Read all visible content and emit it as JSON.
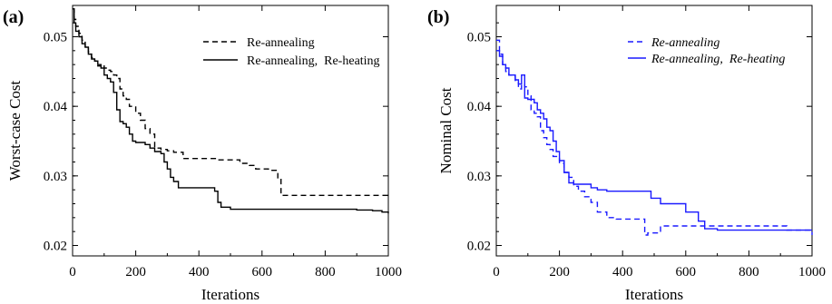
{
  "chart_data": [
    {
      "panel_label": "(a)",
      "type": "line",
      "xlabel": "Iterations",
      "ylabel": "Worst-case Cost",
      "xlim": [
        0,
        1000
      ],
      "ylim": [
        0.0185,
        0.0545
      ],
      "xticks": [
        0,
        200,
        400,
        600,
        800,
        1000
      ],
      "yticks": [
        0.02,
        0.03,
        0.04,
        0.05
      ],
      "xtick_labels": [
        "0",
        "200",
        "400",
        "600",
        "800",
        "1000"
      ],
      "ytick_labels": [
        "0.02",
        "0.03",
        "0.04",
        "0.05"
      ],
      "legend_position": "top-right",
      "legend_italic": false,
      "series": [
        {
          "name": "Re-annealing",
          "color": "#000000",
          "dash": "dashed",
          "x": [
            0,
            5,
            10,
            20,
            30,
            40,
            50,
            60,
            70,
            80,
            90,
            100,
            110,
            120,
            130,
            140,
            150,
            160,
            170,
            180,
            200,
            215,
            230,
            245,
            260,
            280,
            300,
            320,
            350,
            380,
            420,
            460,
            500,
            530,
            560,
            580,
            620,
            650,
            660,
            700,
            800,
            900,
            1000
          ],
          "y": [
            0.054,
            0.0525,
            0.0515,
            0.0505,
            0.0495,
            0.0485,
            0.0478,
            0.047,
            0.0465,
            0.0458,
            0.046,
            0.0455,
            0.0452,
            0.045,
            0.0445,
            0.044,
            0.0425,
            0.0415,
            0.041,
            0.04,
            0.039,
            0.038,
            0.0368,
            0.036,
            0.034,
            0.0338,
            0.0336,
            0.0334,
            0.0325,
            0.0325,
            0.0325,
            0.0323,
            0.0323,
            0.0318,
            0.0315,
            0.031,
            0.0308,
            0.0295,
            0.0272,
            0.0272,
            0.0272,
            0.0272,
            0.0272
          ]
        },
        {
          "name": "Re-annealing,  Re-heating",
          "color": "#000000",
          "dash": "solid",
          "x": [
            0,
            5,
            10,
            20,
            30,
            40,
            50,
            60,
            70,
            80,
            90,
            100,
            110,
            120,
            130,
            140,
            150,
            160,
            170,
            180,
            190,
            200,
            215,
            230,
            245,
            260,
            280,
            290,
            300,
            310,
            320,
            335,
            350,
            380,
            420,
            450,
            460,
            470,
            500,
            550,
            600,
            700,
            800,
            900,
            950,
            980,
            1000
          ],
          "y": [
            0.054,
            0.052,
            0.0508,
            0.05,
            0.049,
            0.0485,
            0.0475,
            0.0468,
            0.0465,
            0.046,
            0.0455,
            0.0445,
            0.044,
            0.0435,
            0.042,
            0.0395,
            0.0378,
            0.0375,
            0.037,
            0.036,
            0.035,
            0.0348,
            0.0348,
            0.0345,
            0.034,
            0.0335,
            0.0332,
            0.032,
            0.031,
            0.0298,
            0.0292,
            0.0283,
            0.0283,
            0.0283,
            0.0283,
            0.0278,
            0.0262,
            0.0255,
            0.0252,
            0.0252,
            0.0252,
            0.0252,
            0.0252,
            0.0251,
            0.025,
            0.0248,
            0.0246
          ]
        }
      ]
    },
    {
      "panel_label": "(b)",
      "type": "line",
      "xlabel": "Iterations",
      "ylabel": "Nominal Cost",
      "xlim": [
        0,
        1000
      ],
      "ylim": [
        0.0185,
        0.0545
      ],
      "xticks": [
        0,
        200,
        400,
        600,
        800,
        1000
      ],
      "yticks": [
        0.02,
        0.03,
        0.04,
        0.05
      ],
      "xtick_labels": [
        "0",
        "200",
        "400",
        "600",
        "800",
        "1000"
      ],
      "ytick_labels": [
        "0.02",
        "0.03",
        "0.04",
        "0.05"
      ],
      "legend_position": "top-right",
      "legend_italic": true,
      "series": [
        {
          "name": "Re-annealing",
          "color": "#1a1aff",
          "dash": "dashed",
          "x": [
            0,
            10,
            20,
            30,
            40,
            50,
            60,
            70,
            80,
            90,
            100,
            110,
            120,
            130,
            140,
            150,
            160,
            170,
            180,
            200,
            215,
            230,
            245,
            260,
            280,
            300,
            320,
            350,
            380,
            420,
            460,
            470,
            480,
            500,
            520,
            560,
            600,
            660,
            700,
            800,
            900,
            920,
            1000
          ],
          "y": [
            0.0495,
            0.0475,
            0.046,
            0.045,
            0.0445,
            0.0443,
            0.0435,
            0.0425,
            0.0432,
            0.0428,
            0.0415,
            0.0395,
            0.039,
            0.0385,
            0.0365,
            0.0355,
            0.0345,
            0.0338,
            0.0328,
            0.0318,
            0.0305,
            0.0298,
            0.0285,
            0.0278,
            0.027,
            0.0262,
            0.0248,
            0.024,
            0.0238,
            0.0238,
            0.0238,
            0.0215,
            0.0218,
            0.0218,
            0.0228,
            0.0228,
            0.0228,
            0.0228,
            0.0228,
            0.0228,
            0.0228,
            0.0222,
            0.0215
          ]
        },
        {
          "name": "Re-annealing,  Re-heating",
          "color": "#1a1aff",
          "dash": "solid",
          "x": [
            0,
            10,
            20,
            30,
            40,
            50,
            60,
            70,
            80,
            90,
            100,
            110,
            120,
            130,
            140,
            150,
            160,
            170,
            180,
            190,
            200,
            215,
            230,
            245,
            260,
            280,
            300,
            320,
            350,
            380,
            400,
            420,
            460,
            490,
            520,
            560,
            600,
            640,
            660,
            700,
            800,
            900,
            1000
          ],
          "y": [
            0.048,
            0.0472,
            0.046,
            0.0455,
            0.0445,
            0.0445,
            0.0438,
            0.0432,
            0.0445,
            0.0412,
            0.041,
            0.041,
            0.0405,
            0.0395,
            0.039,
            0.0382,
            0.037,
            0.0365,
            0.035,
            0.0335,
            0.0322,
            0.0305,
            0.029,
            0.0288,
            0.0288,
            0.0288,
            0.0283,
            0.028,
            0.0278,
            0.0278,
            0.0278,
            0.0278,
            0.0278,
            0.0268,
            0.026,
            0.026,
            0.0248,
            0.0235,
            0.0224,
            0.0222,
            0.0222,
            0.0222,
            0.0222
          ]
        }
      ]
    }
  ]
}
